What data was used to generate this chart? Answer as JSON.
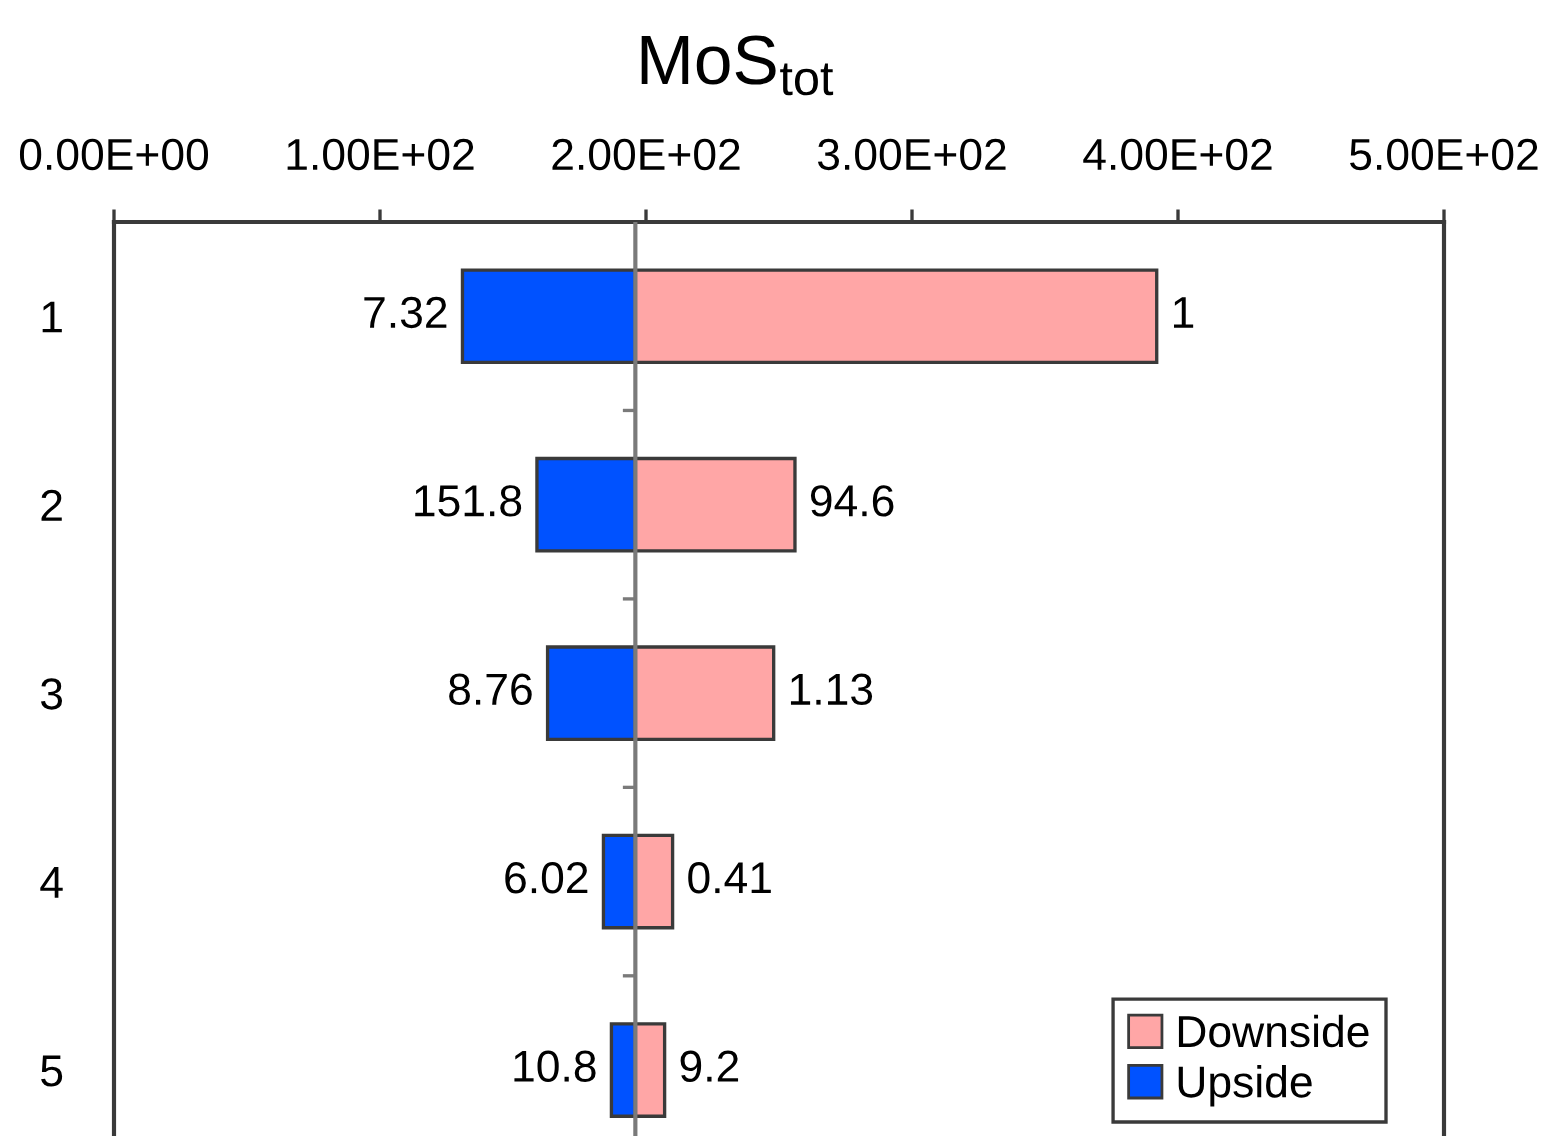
{
  "chart_data": {
    "type": "bar",
    "orientation": "horizontal",
    "title": "MoS$_{tot}$",
    "categories": [
      "1",
      "2",
      "3",
      "4",
      "5"
    ],
    "series": [
      {
        "name": "Downside",
        "color": "#ffa6a6",
        "base": [
          196,
          196,
          196,
          196,
          196
        ],
        "values": [
          196,
          60,
          52,
          14,
          11
        ]
      },
      {
        "name": "Upside",
        "color": "#0052ff",
        "base": [
          196,
          196,
          196,
          196,
          196
        ],
        "values": [
          -65,
          -37,
          -33,
          -12,
          -9
        ]
      }
    ],
    "xlim": [
      0,
      500
    ],
    "xticks": [
      {
        "value": 0,
        "label": "0.00E+00"
      },
      {
        "value": 100,
        "label": "1.00E+02"
      },
      {
        "value": 200,
        "label": "2.00E+02"
      },
      {
        "value": 300,
        "label": "3.00E+02"
      },
      {
        "value": 400,
        "label": "4.00E+02"
      },
      {
        "value": 500,
        "label": "5.00E+02"
      }
    ],
    "ref_lines": [
      {
        "axis": "x",
        "value": 196
      }
    ],
    "annotations": [
      {
        "text": "1",
        "x": 392,
        "y": "1"
      },
      {
        "text": "94.6",
        "x": 256,
        "y": "2"
      },
      {
        "text": "1.13",
        "x": 248,
        "y": "3"
      },
      {
        "text": "0.41",
        "x": 210,
        "y": "4"
      },
      {
        "text": "9.2",
        "x": 207,
        "y": "5"
      },
      {
        "text": "7.32",
        "x": 131,
        "y": "1"
      },
      {
        "text": "151.8",
        "x": 159,
        "y": "2"
      },
      {
        "text": "8.76",
        "x": 163,
        "y": "3"
      },
      {
        "text": "6.02",
        "x": 184,
        "y": "4"
      },
      {
        "text": "10.8",
        "x": 187,
        "y": "5"
      }
    ],
    "legend": "bottom right"
  }
}
